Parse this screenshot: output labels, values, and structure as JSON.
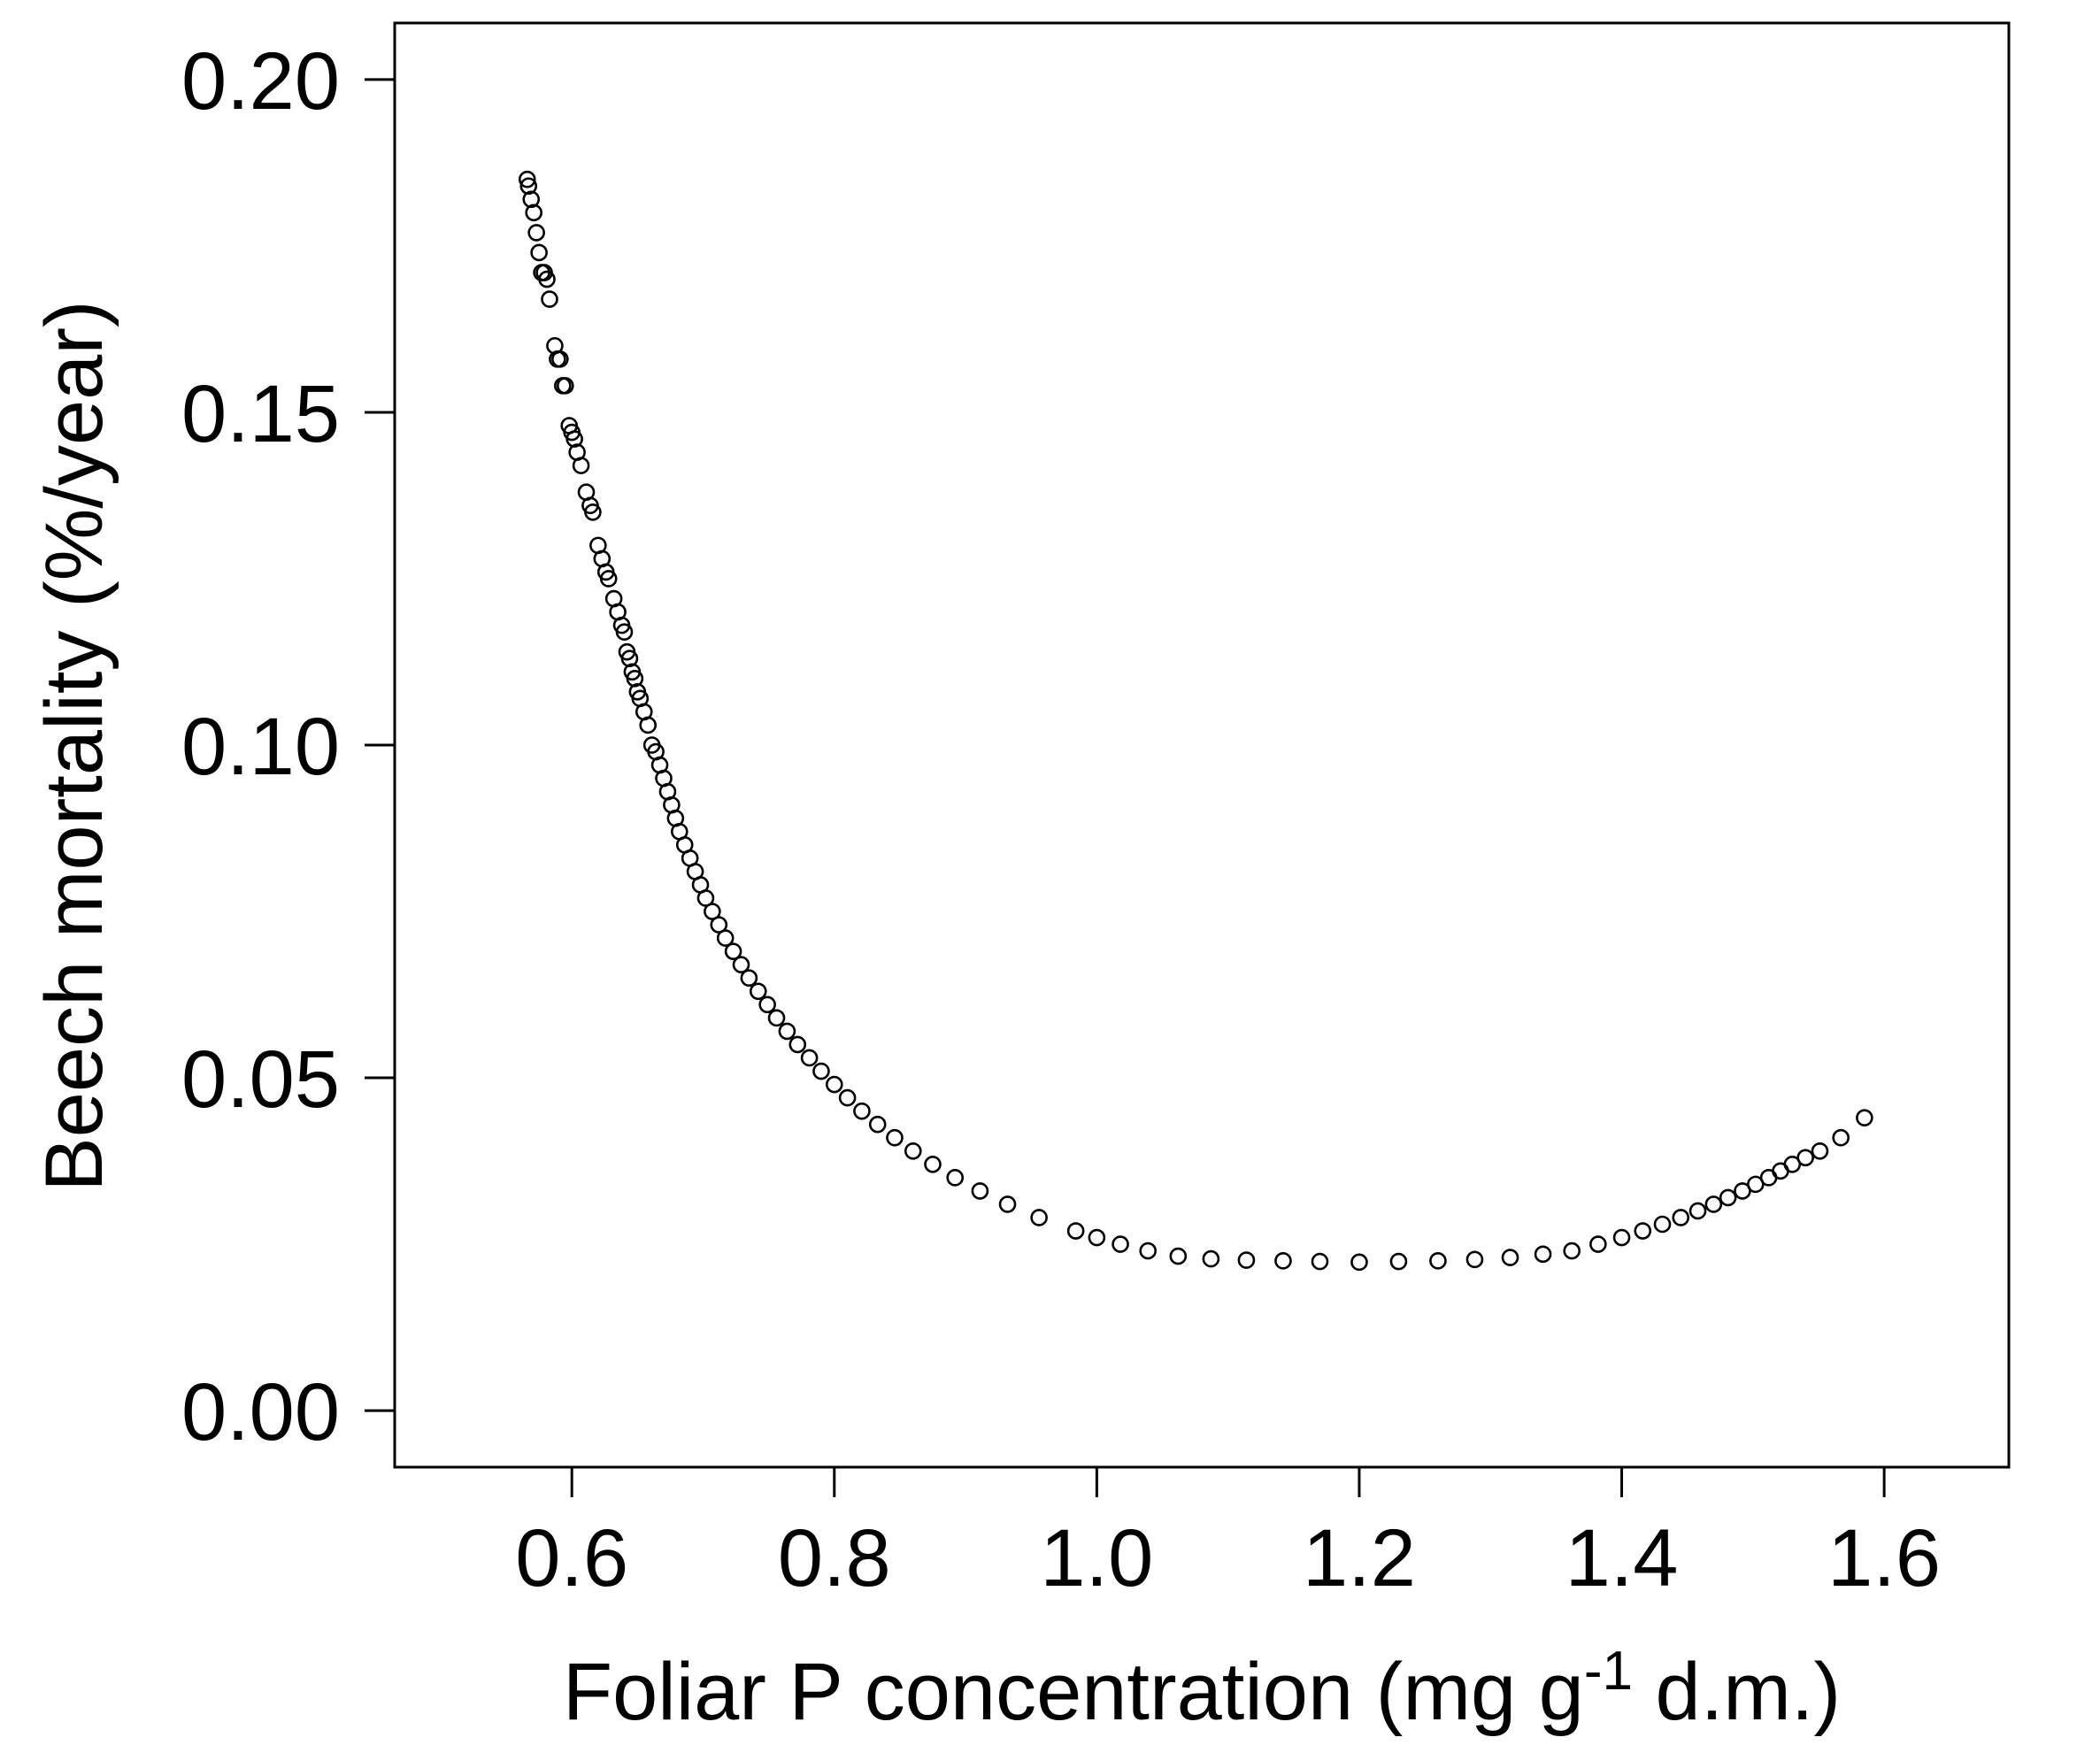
{
  "chart_data": {
    "type": "scatter",
    "title": "",
    "xlabel": {
      "main": "Foliar P concentration (mg g",
      "superscript": "-1",
      "suffix": " d.m.)"
    },
    "ylabel": "Beech mortality (%/year)",
    "xlim": [
      0.465,
      1.695
    ],
    "ylim": [
      -0.0085,
      0.2085
    ],
    "xticks": [
      0.6,
      0.8,
      1.0,
      1.2,
      1.4,
      1.6
    ],
    "xtick_labels": [
      "0.6",
      "0.8",
      "1.0",
      "1.2",
      "1.4",
      "1.6"
    ],
    "yticks": [
      0.0,
      0.05,
      0.1,
      0.15,
      0.2
    ],
    "ytick_labels": [
      "0.00",
      "0.05",
      "0.10",
      "0.15",
      "0.20"
    ],
    "grid": false,
    "legend": "none",
    "marker": "open-circle",
    "series": [
      {
        "points": [
          [
            0.566,
            0.185
          ],
          [
            0.567,
            0.184
          ],
          [
            0.569,
            0.182
          ],
          [
            0.571,
            0.18
          ],
          [
            0.573,
            0.177
          ],
          [
            0.575,
            0.174
          ],
          [
            0.577,
            0.171
          ],
          [
            0.579,
            0.171
          ],
          [
            0.581,
            0.17
          ],
          [
            0.583,
            0.167
          ],
          [
            0.587,
            0.16
          ],
          [
            0.589,
            0.158
          ],
          [
            0.591,
            0.158
          ],
          [
            0.593,
            0.154
          ],
          [
            0.595,
            0.154
          ],
          [
            0.598,
            0.148
          ],
          [
            0.6,
            0.147
          ],
          [
            0.602,
            0.146
          ],
          [
            0.604,
            0.144
          ],
          [
            0.607,
            0.142
          ],
          [
            0.611,
            0.138
          ],
          [
            0.614,
            0.136
          ],
          [
            0.616,
            0.135
          ],
          [
            0.62,
            0.13
          ],
          [
            0.623,
            0.128
          ],
          [
            0.626,
            0.126
          ],
          [
            0.628,
            0.125
          ],
          [
            0.632,
            0.122
          ],
          [
            0.635,
            0.12
          ],
          [
            0.638,
            0.118
          ],
          [
            0.64,
            0.117
          ],
          [
            0.642,
            0.114
          ],
          [
            0.644,
            0.113
          ],
          [
            0.646,
            0.111
          ],
          [
            0.648,
            0.11
          ],
          [
            0.65,
            0.108
          ],
          [
            0.652,
            0.107
          ],
          [
            0.655,
            0.105
          ],
          [
            0.658,
            0.103
          ],
          [
            0.661,
            0.1
          ],
          [
            0.664,
            0.099
          ],
          [
            0.667,
            0.097
          ],
          [
            0.67,
            0.095
          ],
          [
            0.673,
            0.093
          ],
          [
            0.676,
            0.091
          ],
          [
            0.679,
            0.089
          ],
          [
            0.682,
            0.087
          ],
          [
            0.686,
            0.085
          ],
          [
            0.69,
            0.083
          ],
          [
            0.694,
            0.081
          ],
          [
            0.698,
            0.079
          ],
          [
            0.702,
            0.077
          ],
          [
            0.707,
            0.075
          ],
          [
            0.712,
            0.073
          ],
          [
            0.717,
            0.071
          ],
          [
            0.723,
            0.069
          ],
          [
            0.729,
            0.067
          ],
          [
            0.735,
            0.065
          ],
          [
            0.742,
            0.063
          ],
          [
            0.749,
            0.061
          ],
          [
            0.756,
            0.059
          ],
          [
            0.764,
            0.057
          ],
          [
            0.772,
            0.055
          ],
          [
            0.781,
            0.053
          ],
          [
            0.79,
            0.051
          ],
          [
            0.8,
            0.049
          ],
          [
            0.81,
            0.047
          ],
          [
            0.821,
            0.045
          ],
          [
            0.833,
            0.043
          ],
          [
            0.846,
            0.041
          ],
          [
            0.86,
            0.039
          ],
          [
            0.875,
            0.037
          ],
          [
            0.892,
            0.035
          ],
          [
            0.911,
            0.033
          ],
          [
            0.932,
            0.031
          ],
          [
            0.956,
            0.029
          ],
          [
            0.984,
            0.027
          ],
          [
            1.0,
            0.026
          ],
          [
            1.018,
            0.025
          ],
          [
            1.039,
            0.024
          ],
          [
            1.062,
            0.0232
          ],
          [
            1.087,
            0.0228
          ],
          [
            1.114,
            0.0226
          ],
          [
            1.142,
            0.0225
          ],
          [
            1.17,
            0.0224
          ],
          [
            1.2,
            0.0223
          ],
          [
            1.23,
            0.0224
          ],
          [
            1.26,
            0.0225
          ],
          [
            1.288,
            0.0227
          ],
          [
            1.315,
            0.023
          ],
          [
            1.34,
            0.0235
          ],
          [
            1.362,
            0.024
          ],
          [
            1.382,
            0.025
          ],
          [
            1.4,
            0.026
          ],
          [
            1.416,
            0.027
          ],
          [
            1.431,
            0.028
          ],
          [
            1.445,
            0.029
          ],
          [
            1.458,
            0.03
          ],
          [
            1.47,
            0.031
          ],
          [
            1.481,
            0.032
          ],
          [
            1.492,
            0.033
          ],
          [
            1.502,
            0.034
          ],
          [
            1.512,
            0.035
          ],
          [
            1.521,
            0.036
          ],
          [
            1.53,
            0.037
          ],
          [
            1.54,
            0.038
          ],
          [
            1.551,
            0.039
          ],
          [
            1.567,
            0.041
          ],
          [
            1.585,
            0.044
          ]
        ]
      }
    ]
  }
}
